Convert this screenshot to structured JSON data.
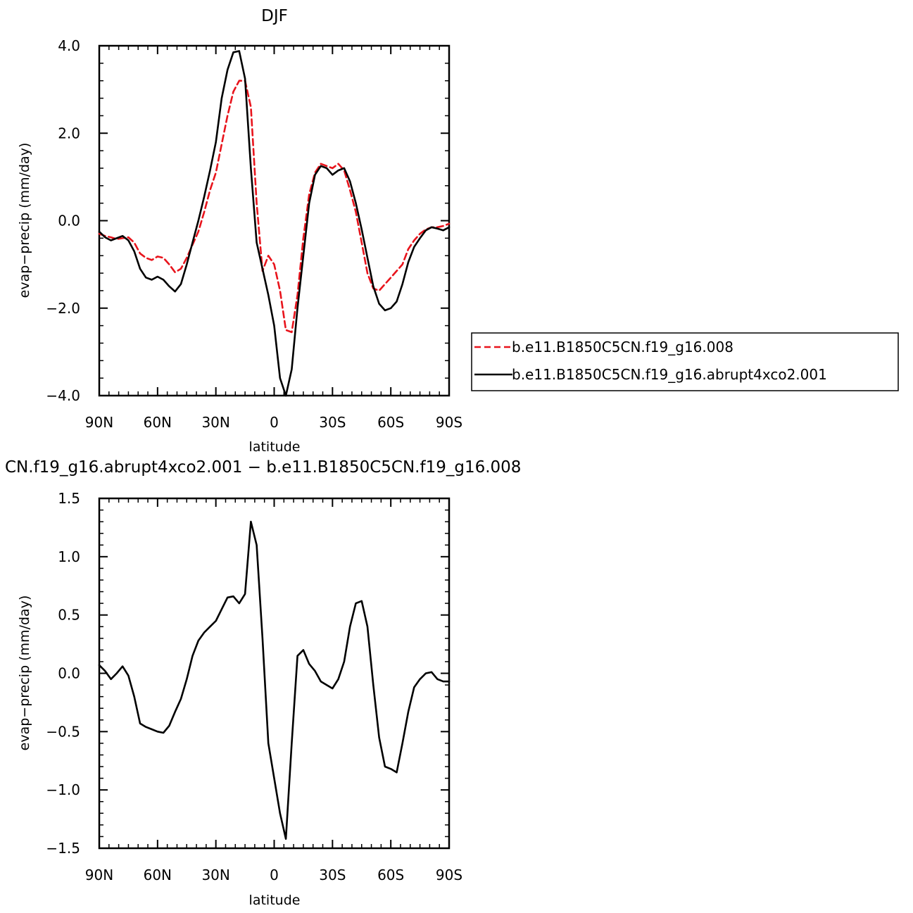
{
  "chart_data": [
    {
      "type": "line",
      "title": "DJF",
      "xlabel": "latitude",
      "ylabel": "evap−precip (mm/day)",
      "x_ticks": [
        "90N",
        "60N",
        "30N",
        "0",
        "30S",
        "60S",
        "90S"
      ],
      "y_ticks": [
        "−4.0",
        "−2.0",
        "0.0",
        "2.0",
        "4.0"
      ],
      "xlim": [
        90,
        -90
      ],
      "ylim": [
        -4,
        4
      ],
      "legend_position": "right",
      "series": [
        {
          "name": "b.e11.B1850C5CN.f19_g16.008",
          "color": "#e8141c",
          "style": "dashed",
          "x": [
            90,
            87,
            84,
            81,
            78,
            75,
            72,
            69,
            66,
            63,
            60,
            57,
            54,
            51,
            48,
            45,
            42,
            39,
            36,
            33,
            30,
            27,
            24,
            21,
            18,
            15,
            12,
            9,
            6,
            3,
            0,
            -3,
            -6,
            -9,
            -12,
            -15,
            -18,
            -21,
            -24,
            -27,
            -30,
            -33,
            -36,
            -39,
            -42,
            -45,
            -48,
            -51,
            -54,
            -57,
            -60,
            -63,
            -66,
            -69,
            -72,
            -75,
            -78,
            -81,
            -84,
            -87,
            -90
          ],
          "y": [
            -0.3,
            -0.35,
            -0.38,
            -0.42,
            -0.4,
            -0.38,
            -0.5,
            -0.75,
            -0.85,
            -0.9,
            -0.82,
            -0.85,
            -1.0,
            -1.18,
            -1.1,
            -0.85,
            -0.55,
            -0.25,
            0.2,
            0.7,
            1.1,
            1.75,
            2.4,
            2.95,
            3.2,
            3.2,
            2.6,
            0.4,
            -1.15,
            -0.8,
            -1.0,
            -1.6,
            -2.5,
            -2.55,
            -1.7,
            -0.4,
            0.6,
            1.1,
            1.3,
            1.25,
            1.2,
            1.3,
            1.15,
            0.7,
            0.2,
            -0.5,
            -1.2,
            -1.55,
            -1.6,
            -1.45,
            -1.3,
            -1.15,
            -1.0,
            -0.65,
            -0.45,
            -0.3,
            -0.2,
            -0.15,
            -0.15,
            -0.12,
            -0.07
          ]
        },
        {
          "name": "b.e11.B1850C5CN.f19_g16.abrupt4xco2.001",
          "color": "#000000",
          "style": "solid",
          "x": [
            90,
            87,
            84,
            81,
            78,
            75,
            72,
            69,
            66,
            63,
            60,
            57,
            54,
            51,
            48,
            45,
            42,
            39,
            36,
            33,
            30,
            27,
            24,
            21,
            18,
            15,
            12,
            9,
            6,
            3,
            0,
            -3,
            -6,
            -9,
            -12,
            -15,
            -18,
            -21,
            -24,
            -27,
            -30,
            -33,
            -36,
            -39,
            -42,
            -45,
            -48,
            -51,
            -54,
            -57,
            -60,
            -63,
            -66,
            -69,
            -72,
            -75,
            -78,
            -81,
            -84,
            -87,
            -90
          ],
          "y": [
            -0.25,
            -0.38,
            -0.45,
            -0.4,
            -0.35,
            -0.45,
            -0.7,
            -1.1,
            -1.3,
            -1.35,
            -1.28,
            -1.35,
            -1.5,
            -1.62,
            -1.45,
            -1.0,
            -0.5,
            0.0,
            0.55,
            1.15,
            1.8,
            2.8,
            3.45,
            3.85,
            3.88,
            3.25,
            1.2,
            -0.5,
            -1.1,
            -1.7,
            -2.4,
            -3.6,
            -4.0,
            -3.4,
            -2.0,
            -0.8,
            0.4,
            1.05,
            1.25,
            1.2,
            1.05,
            1.15,
            1.2,
            0.9,
            0.4,
            -0.2,
            -0.85,
            -1.5,
            -1.9,
            -2.05,
            -2.0,
            -1.85,
            -1.45,
            -0.95,
            -0.6,
            -0.4,
            -0.22,
            -0.15,
            -0.18,
            -0.22,
            -0.15
          ]
        }
      ]
    },
    {
      "type": "line",
      "title": "CN.f19_g16.abrupt4xco2.001 − b.e11.B1850C5CN.f19_g16.008",
      "xlabel": "latitude",
      "ylabel": "evap−precip (mm/day)",
      "x_ticks": [
        "90N",
        "60N",
        "30N",
        "0",
        "30S",
        "60S",
        "90S"
      ],
      "y_ticks": [
        "−1.5",
        "−1.0",
        "−0.5",
        "0.0",
        "0.5",
        "1.0",
        "1.5"
      ],
      "xlim": [
        90,
        -90
      ],
      "ylim": [
        -1.5,
        1.5
      ],
      "series": [
        {
          "color": "#000000",
          "style": "solid",
          "x": [
            90,
            87,
            84,
            81,
            78,
            75,
            72,
            69,
            66,
            63,
            60,
            57,
            54,
            51,
            48,
            45,
            42,
            39,
            36,
            33,
            30,
            27,
            24,
            21,
            18,
            15,
            12,
            9,
            6,
            3,
            0,
            -3,
            -6,
            -9,
            -12,
            -15,
            -18,
            -21,
            -24,
            -27,
            -30,
            -33,
            -36,
            -39,
            -42,
            -45,
            -48,
            -51,
            -54,
            -57,
            -60,
            -63,
            -66,
            -69,
            -72,
            -75,
            -78,
            -81,
            -84,
            -87,
            -90
          ],
          "y": [
            0.07,
            0.02,
            -0.05,
            0.0,
            0.06,
            -0.02,
            -0.2,
            -0.43,
            -0.46,
            -0.48,
            -0.5,
            -0.51,
            -0.45,
            -0.33,
            -0.22,
            -0.05,
            0.15,
            0.28,
            0.35,
            0.4,
            0.45,
            0.55,
            0.65,
            0.66,
            0.6,
            0.68,
            1.3,
            1.1,
            0.3,
            -0.6,
            -0.9,
            -1.2,
            -1.42,
            -0.6,
            0.15,
            0.2,
            0.08,
            0.02,
            -0.07,
            -0.1,
            -0.13,
            -0.05,
            0.1,
            0.4,
            0.6,
            0.62,
            0.4,
            -0.1,
            -0.55,
            -0.8,
            -0.82,
            -0.85,
            -0.6,
            -0.33,
            -0.12,
            -0.05,
            0.0,
            0.01,
            -0.05,
            -0.07,
            -0.07
          ]
        }
      ]
    }
  ]
}
